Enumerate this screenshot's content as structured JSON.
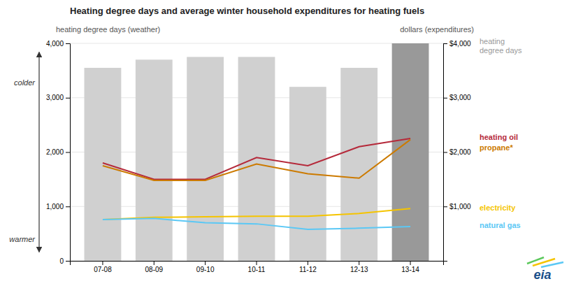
{
  "chart_data": {
    "type": "bar",
    "title": "Heating degree days and average winter household expenditures for heating fuels",
    "y_label": "heating degree days (weather)",
    "y2_label": "dollars (expenditures)",
    "categories": [
      "07-08",
      "08-09",
      "09-10",
      "10-11",
      "11-12",
      "12-13",
      "13-14"
    ],
    "series": [
      {
        "name": "heating\ndegree days",
        "type": "bar",
        "colors": [
          "#d0d0d0",
          "#d0d0d0",
          "#d0d0d0",
          "#d0d0d0",
          "#d0d0d0",
          "#d0d0d0",
          "#999999"
        ],
        "values": [
          3550,
          3700,
          3750,
          3750,
          3200,
          3550,
          4000
        ]
      },
      {
        "name": "heating oil",
        "type": "line",
        "axis": "y2",
        "color": "#b5293a",
        "values": [
          1800,
          1500,
          1500,
          1900,
          1750,
          2100,
          2250
        ]
      },
      {
        "name": "propane*",
        "type": "line",
        "axis": "y2",
        "color": "#cc7a00",
        "values": [
          1750,
          1480,
          1480,
          1780,
          1600,
          1520,
          2230
        ]
      },
      {
        "name": "electricity",
        "type": "line",
        "axis": "y2",
        "color": "#f5c400",
        "values": [
          760,
          800,
          810,
          820,
          820,
          870,
          960
        ]
      },
      {
        "name": "natural gas",
        "type": "line",
        "axis": "y2",
        "color": "#5bc8f5",
        "values": [
          760,
          780,
          700,
          680,
          580,
          600,
          630
        ]
      }
    ],
    "ylim": [
      0,
      4000
    ],
    "yticks": [
      0,
      {
        "value": 1000,
        "label": "1,000"
      },
      {
        "value": 2000,
        "label": "2,000"
      },
      {
        "value": 3000,
        "label": "3,000"
      },
      {
        "value": 4000,
        "label": "4,000"
      }
    ],
    "y2lim": [
      0,
      4000
    ],
    "y2ticks": [
      {
        "value": 1000,
        "label": "$1,000"
      },
      {
        "value": 2000,
        "label": "$2,000"
      },
      {
        "value": 3000,
        "label": "$3,000"
      },
      {
        "value": 4000,
        "label": "$4,000"
      }
    ],
    "grid": true,
    "legend": "right",
    "annotations": [
      {
        "text": "colder"
      },
      {
        "text": "warmer"
      },
      {
        "text": "eia"
      }
    ]
  }
}
